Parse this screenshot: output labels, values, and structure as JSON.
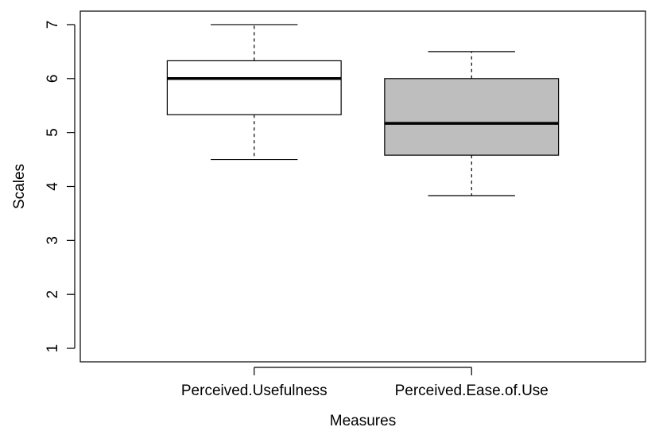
{
  "chart_data": {
    "type": "boxplot",
    "xlabel": "Measures",
    "ylabel": "Scales",
    "ylim": [
      0.75,
      7.25
    ],
    "yticks": [
      1,
      2,
      3,
      4,
      5,
      6,
      7
    ],
    "grid": false,
    "categories": [
      "Perceived.Usefulness",
      "Perceived.Ease.of.Use"
    ],
    "boxes": [
      {
        "category": "Perceived.Usefulness",
        "whisker_low": 4.5,
        "q1": 5.33,
        "median": 6.0,
        "q3": 6.33,
        "whisker_high": 7.0,
        "fill": "#ffffff"
      },
      {
        "category": "Perceived.Ease.of.Use",
        "whisker_low": 3.83,
        "q1": 4.58,
        "median": 5.17,
        "q3": 6.0,
        "whisker_high": 6.5,
        "fill": "#bebebe"
      }
    ]
  }
}
